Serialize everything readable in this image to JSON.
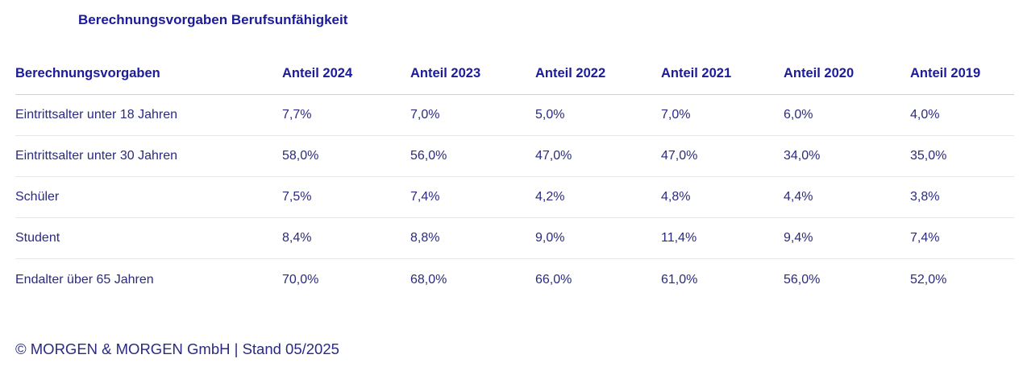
{
  "page": {
    "title": "Berechnungsvorgaben Berufsunfähigkeit"
  },
  "table": {
    "columns": [
      "Berechnungsvorgaben",
      "Anteil 2024",
      "Anteil 2023",
      "Anteil 2022",
      "Anteil 2021",
      "Anteil 2020",
      "Anteil 2019"
    ],
    "rows": [
      {
        "label": "Eintrittsalter unter 18 Jahren",
        "values": [
          "7,7%",
          "7,0%",
          "5,0%",
          "7,0%",
          "6,0%",
          "4,0%"
        ]
      },
      {
        "label": "Eintrittsalter unter 30 Jahren",
        "values": [
          "58,0%",
          "56,0%",
          "47,0%",
          "47,0%",
          "34,0%",
          "35,0%"
        ]
      },
      {
        "label": "Schüler",
        "values": [
          "7,5%",
          "7,4%",
          "4,2%",
          "4,8%",
          "4,4%",
          "3,8%"
        ]
      },
      {
        "label": "Student",
        "values": [
          "8,4%",
          "8,8%",
          "9,0%",
          "11,4%",
          "9,4%",
          "7,4%"
        ]
      },
      {
        "label": "Endalter über 65 Jahren",
        "values": [
          "70,0%",
          "68,0%",
          "66,0%",
          "61,0%",
          "56,0%",
          "52,0%"
        ]
      }
    ]
  },
  "chart_data": {
    "type": "table",
    "title": "Berechnungsvorgaben Berufsunfähigkeit",
    "columns": [
      "Berechnungsvorgaben",
      "Anteil 2024",
      "Anteil 2023",
      "Anteil 2022",
      "Anteil 2021",
      "Anteil 2020",
      "Anteil 2019"
    ],
    "years": [
      2024,
      2023,
      2022,
      2021,
      2020,
      2019
    ],
    "series": [
      {
        "name": "Eintrittsalter unter 18 Jahren",
        "values_pct": [
          7.7,
          7.0,
          5.0,
          7.0,
          6.0,
          4.0
        ]
      },
      {
        "name": "Eintrittsalter unter 30 Jahren",
        "values_pct": [
          58.0,
          56.0,
          47.0,
          47.0,
          34.0,
          35.0
        ]
      },
      {
        "name": "Schüler",
        "values_pct": [
          7.5,
          7.4,
          4.2,
          4.8,
          4.4,
          3.8
        ]
      },
      {
        "name": "Student",
        "values_pct": [
          8.4,
          8.8,
          9.0,
          11.4,
          9.4,
          7.4
        ]
      },
      {
        "name": "Endalter über 65 Jahren",
        "values_pct": [
          70.0,
          68.0,
          66.0,
          61.0,
          56.0,
          52.0
        ]
      }
    ],
    "value_format": "percent, German decimal comma, one decimal place"
  },
  "footer": {
    "text": "© MORGEN & MORGEN GmbH | Stand 05/2025"
  },
  "colors": {
    "heading": "#1b1b9b",
    "body_text": "#2a2a80",
    "header_divider": "#c9d6e1",
    "row_divider": "#e6e6e6",
    "background": "#ffffff"
  }
}
